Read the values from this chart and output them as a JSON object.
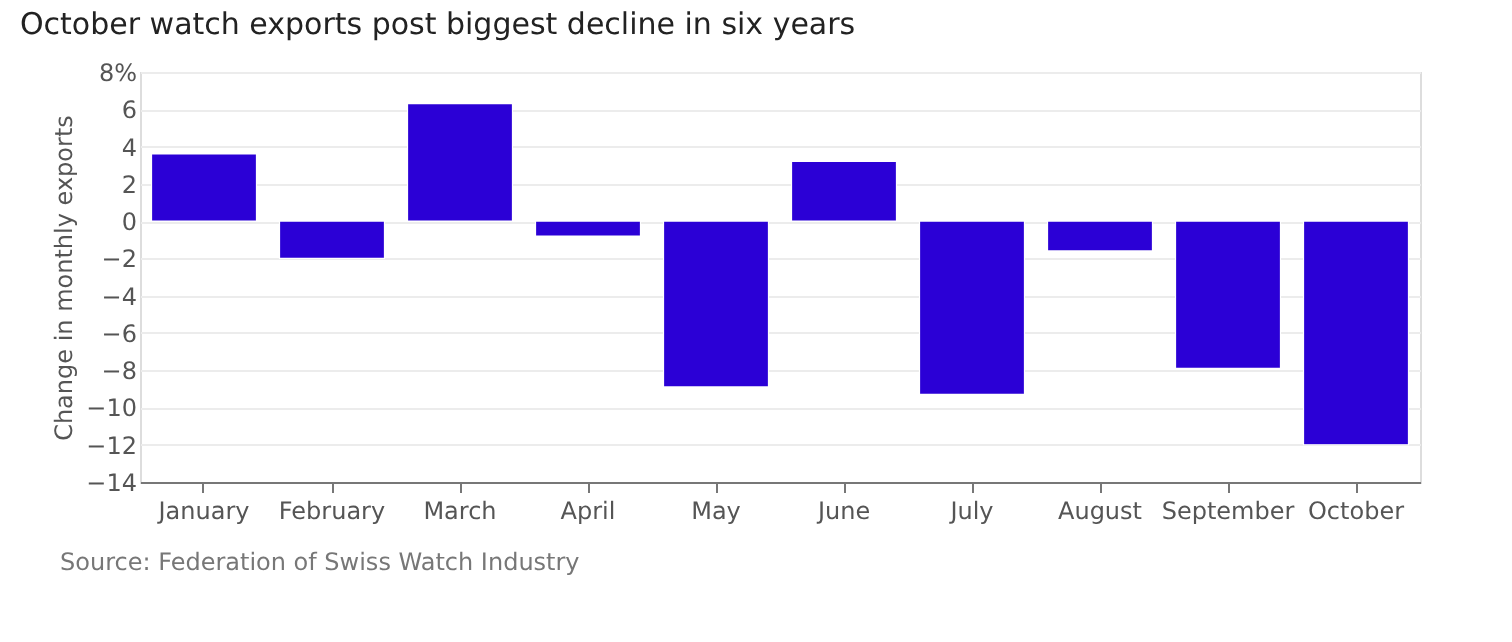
{
  "chart_data": {
    "type": "bar",
    "title": "October watch exports post biggest decline in six years",
    "ylabel": "Change in monthly exports",
    "categories": [
      "January",
      "February",
      "March",
      "April",
      "May",
      "June",
      "July",
      "August",
      "September",
      "October"
    ],
    "values": [
      3.6,
      -2.0,
      6.3,
      -0.8,
      -8.9,
      3.2,
      -9.3,
      -1.6,
      -7.9,
      -12.0
    ],
    "color": "#2b00d6",
    "ylim": [
      -14,
      8
    ],
    "yticks": [
      -14,
      -12,
      -10,
      -8,
      -6,
      -4,
      -2,
      0,
      2,
      4,
      6,
      {
        "value": 8,
        "label": "8%"
      }
    ],
    "grid": "y",
    "annotations": [
      "Source: Federation of Swiss Watch Industry"
    ]
  }
}
